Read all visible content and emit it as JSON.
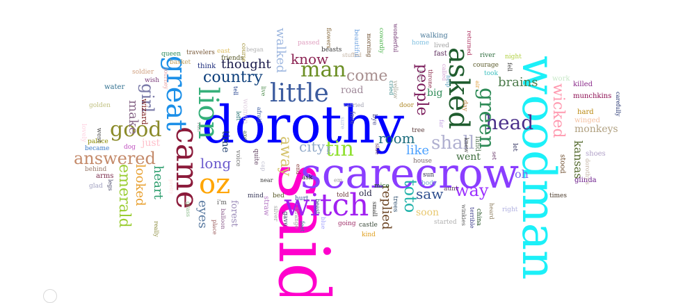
{
  "words": [
    {
      "text": "said",
      "color": "#ff00cc"
    },
    {
      "text": "dorothy",
      "color": "#0000ff"
    },
    {
      "text": "scarecrow",
      "color": "#8a3dff"
    },
    {
      "text": "woodman",
      "color": "#1cf0f8"
    },
    {
      "text": "witch",
      "color": "#a020f0"
    },
    {
      "text": "came",
      "color": "#8b1a3a"
    },
    {
      "text": "great",
      "color": "#1c8fe8"
    },
    {
      "text": "lion",
      "color": "#36b07a"
    },
    {
      "text": "oz",
      "color": "#ffa500"
    },
    {
      "text": "tin",
      "color": "#90e030"
    },
    {
      "text": "asked",
      "color": "#1f5c2e"
    },
    {
      "text": "little",
      "color": "#3b5b9e"
    },
    {
      "text": "good",
      "color": "#8b8b2a"
    },
    {
      "text": "man",
      "color": "#6b8e23"
    },
    {
      "text": "answered",
      "color": "#c48a6a"
    },
    {
      "text": "head",
      "color": "#4b2f8a"
    },
    {
      "text": "green",
      "color": "#2e8b57"
    },
    {
      "text": "wicked",
      "color": "#ff9ab0"
    },
    {
      "text": "country",
      "color": "#0b3d7a"
    },
    {
      "text": "away",
      "color": "#d4c26a"
    },
    {
      "text": "girl",
      "color": "#7a7aa8"
    },
    {
      "text": "shall",
      "color": "#b0b0d0"
    },
    {
      "text": "come",
      "color": "#a89090"
    },
    {
      "text": "way",
      "color": "#9b30ff"
    },
    {
      "text": "toto",
      "color": "#20b2aa"
    },
    {
      "text": "people",
      "color": "#7a1a5a"
    },
    {
      "text": "emerald",
      "color": "#9acd32"
    },
    {
      "text": "know",
      "color": "#8b2252"
    },
    {
      "text": "thought",
      "color": "#1a1a4a"
    },
    {
      "text": "city",
      "color": "#8fa8c8"
    },
    {
      "text": "room",
      "color": "#1e6e7e"
    },
    {
      "text": "long",
      "color": "#6a5acd"
    },
    {
      "text": "looked",
      "color": "#e8a030"
    },
    {
      "text": "heart",
      "color": "#2e9e6e"
    },
    {
      "text": "make",
      "color": "#8a6a8a"
    },
    {
      "text": "eyes",
      "color": "#5a7aa0"
    },
    {
      "text": "replied",
      "color": "#6b4423"
    },
    {
      "text": "saw",
      "color": "#2f4f8f"
    },
    {
      "text": "like",
      "color": "#4aa0ff"
    },
    {
      "text": "brains",
      "color": "#4a7a4a"
    },
    {
      "text": "kansas",
      "color": "#556b2f"
    },
    {
      "text": "monkeys",
      "color": "#b0a080"
    },
    {
      "text": "big",
      "color": "#2e8b57"
    },
    {
      "text": "went",
      "color": "#3a6a3a"
    },
    {
      "text": "oh",
      "color": "#7b68ee"
    },
    {
      "text": "walked",
      "color": "#9fb8e0"
    },
    {
      "text": "road",
      "color": "#a08a9a"
    },
    {
      "text": "time",
      "color": "#1a3a6a"
    },
    {
      "text": "forest",
      "color": "#9a8ab8"
    },
    {
      "text": "soon",
      "color": "#e8c870"
    },
    {
      "text": "just",
      "color": "#ffc0cb"
    },
    {
      "text": "wizard",
      "color": "#7a1a1a"
    },
    {
      "text": "glinda",
      "color": "#6a1a8a"
    },
    {
      "text": "shoes",
      "color": "#b0a0c8"
    },
    {
      "text": "stood",
      "color": "#6b4a2a"
    },
    {
      "text": "killed",
      "color": "#8a2a8a"
    },
    {
      "text": "munchkins",
      "color": "#8b0a50"
    },
    {
      "text": "carefully",
      "color": "#1a2a6a"
    },
    {
      "text": "hard",
      "color": "#b8860b"
    },
    {
      "text": "winged",
      "color": "#f4c0a0"
    },
    {
      "text": "work",
      "color": "#c8e8c8"
    },
    {
      "text": "water",
      "color": "#2f6f8f"
    },
    {
      "text": "golden",
      "color": "#c0c080"
    },
    {
      "text": "palace",
      "color": "#8b8b00"
    },
    {
      "text": "west",
      "color": "#4a4a4a"
    },
    {
      "text": "lovely",
      "color": "#ffd0e0"
    },
    {
      "text": "became",
      "color": "#3a7ac8"
    },
    {
      "text": "dog",
      "color": "#c050c0"
    },
    {
      "text": "behind",
      "color": "#9a7a6a"
    },
    {
      "text": "arms",
      "color": "#7a2a4a"
    },
    {
      "text": "glad",
      "color": "#a0a0c0"
    },
    {
      "text": "legs",
      "color": "#4a4a6a"
    },
    {
      "text": "soldier",
      "color": "#d0a080"
    },
    {
      "text": "queen",
      "color": "#2a8a5a"
    },
    {
      "text": "travelers",
      "color": "#7a5a3a"
    },
    {
      "text": "east",
      "color": "#e0c060"
    },
    {
      "text": "basket",
      "color": "#c0a060"
    },
    {
      "text": "wish",
      "color": "#7a3a7a"
    },
    {
      "text": "journey",
      "color": "#e8a0a0"
    },
    {
      "text": "think",
      "color": "#1a2a7a"
    },
    {
      "text": "course",
      "color": "#9a8a2a"
    },
    {
      "text": "friends",
      "color": "#5a5a2a"
    },
    {
      "text": "began",
      "color": "#b0b0b0"
    },
    {
      "text": "tell",
      "color": "#1a3a8a"
    },
    {
      "text": "live",
      "color": "#4a8a4a"
    },
    {
      "text": "ran",
      "color": "#a0a0a0"
    },
    {
      "text": "left",
      "color": "#1a6a6a"
    },
    {
      "text": "afraid",
      "color": "#3a5aa0"
    },
    {
      "text": "woman",
      "color": "#e0d0e0"
    },
    {
      "text": "axe",
      "color": "#4a6a4a"
    },
    {
      "text": "voice",
      "color": "#6a6a6a"
    },
    {
      "text": "quite",
      "color": "#5a3a5a"
    },
    {
      "text": "sat",
      "color": "#8a8aff"
    },
    {
      "text": "end",
      "color": "#8a3a3a"
    },
    {
      "text": "cap",
      "color": "#c0c0d0"
    },
    {
      "text": "pretty",
      "color": "#ffe0e0"
    },
    {
      "text": "near",
      "color": "#3a3a3a"
    },
    {
      "text": "mind",
      "color": "#3a3a5a"
    },
    {
      "text": "bed",
      "color": "#5a5a2a"
    },
    {
      "text": "i'm",
      "color": "#5a5a5a"
    },
    {
      "text": "balloon",
      "color": "#8a5a8a"
    },
    {
      "text": "grass",
      "color": "#8aba8a"
    },
    {
      "text": "place",
      "color": "#9a5a5a"
    },
    {
      "text": "really",
      "color": "#8a8a3a"
    },
    {
      "text": "straw",
      "color": "#b070c0"
    },
    {
      "text": "silver",
      "color": "#a0a0a0"
    },
    {
      "text": "strange",
      "color": "#9a9a9a"
    },
    {
      "text": "feet",
      "color": "#3a7a9a"
    },
    {
      "text": "hurt",
      "color": "#3a5a9a"
    },
    {
      "text": "beast",
      "color": "#2a4a7a"
    },
    {
      "text": "gave",
      "color": "#3a3a6a"
    },
    {
      "text": "blue",
      "color": "#a0a0ff"
    },
    {
      "text": "told",
      "color": "#6a3a3a"
    },
    {
      "text": "going",
      "color": "#a0306a"
    },
    {
      "text": "ask",
      "color": "#1a1a2a"
    },
    {
      "text": "em",
      "color": "#a0a0a0"
    },
    {
      "text": "mice",
      "color": "#1a5a1a"
    },
    {
      "text": "carried",
      "color": "#a0a0b0"
    },
    {
      "text": "face",
      "color": "#6a6aa0"
    },
    {
      "text": "bye",
      "color": "#4a4a8a"
    },
    {
      "text": "sure",
      "color": "#b0c0e0"
    },
    {
      "text": "cried",
      "color": "#3a8a8a"
    },
    {
      "text": "small",
      "color": "#2a2a2a"
    },
    {
      "text": "castle",
      "color": "#3a4a3a"
    },
    {
      "text": "kind",
      "color": "#e0a020"
    },
    {
      "text": "trees",
      "color": "#2a4a6a"
    },
    {
      "text": "side",
      "color": "#6a3a6a"
    },
    {
      "text": "old",
      "color": "#2a2a4a"
    },
    {
      "text": "house",
      "color": "#7a6a6a"
    },
    {
      "text": "body",
      "color": "#7ab0d0"
    },
    {
      "text": "door",
      "color": "#b08a2a"
    },
    {
      "text": "tree",
      "color": "#5a3a3a"
    },
    {
      "text": "sun",
      "color": "#2a2a4a"
    },
    {
      "text": "aunt",
      "color": "#5a3a5a"
    },
    {
      "text": "started",
      "color": "#b0b0b0"
    },
    {
      "text": "winkies",
      "color": "#5a5a5a"
    },
    {
      "text": "terrible",
      "color": "#3a3a8a"
    },
    {
      "text": "china",
      "color": "#1a4a1a"
    },
    {
      "text": "knew",
      "color": "#3a3a3a"
    },
    {
      "text": "land",
      "color": "#5a7a5a"
    },
    {
      "text": "far",
      "color": "#c0a0e0"
    },
    {
      "text": "set",
      "color": "#6a3a6a"
    },
    {
      "text": "let",
      "color": "#2a2a5a"
    },
    {
      "text": "heard",
      "color": "#8a7a5a"
    },
    {
      "text": "right",
      "color": "#b0b0e0"
    },
    {
      "text": "times",
      "color": "#4a3a2a"
    },
    {
      "text": "dorothy's",
      "color": "#c0b0a0"
    },
    {
      "text": "day",
      "color": "#c08040"
    },
    {
      "text": "air",
      "color": "#e0a040"
    },
    {
      "text": "took",
      "color": "#40c0c0"
    },
    {
      "text": "fell",
      "color": "#3a3a3a"
    },
    {
      "text": "courage",
      "color": "#5a5a2a"
    },
    {
      "text": "river",
      "color": "#2a6a3a"
    },
    {
      "text": "night",
      "color": "#b0d040"
    },
    {
      "text": "returned",
      "color": "#aa2a5a"
    },
    {
      "text": "fast",
      "color": "#5a2a5a"
    },
    {
      "text": "called",
      "color": "#d0a0d0"
    },
    {
      "text": "lived",
      "color": "#a0a0a0"
    },
    {
      "text": "home",
      "color": "#80c0e0"
    },
    {
      "text": "walking",
      "color": "#4a7a9a"
    },
    {
      "text": "throne",
      "color": "#8a2a4a"
    },
    {
      "text": "help",
      "color": "#5aa0c0"
    },
    {
      "text": "king",
      "color": "#c0c0c0"
    },
    {
      "text": "wonderful",
      "color": "#6a2a6a"
    },
    {
      "text": "cowardly",
      "color": "#40b040"
    },
    {
      "text": "morning",
      "color": "#6a4a2a"
    },
    {
      "text": "yellow",
      "color": "#a0a090"
    },
    {
      "text": "beautiful",
      "color": "#6aa0e0"
    },
    {
      "text": "flowers",
      "color": "#7a5a2a"
    },
    {
      "text": "stuffed",
      "color": "#c0b0a0"
    },
    {
      "text": "beasts",
      "color": "#3a3a3a"
    },
    {
      "text": "passed",
      "color": "#e0a0c0"
    }
  ]
}
